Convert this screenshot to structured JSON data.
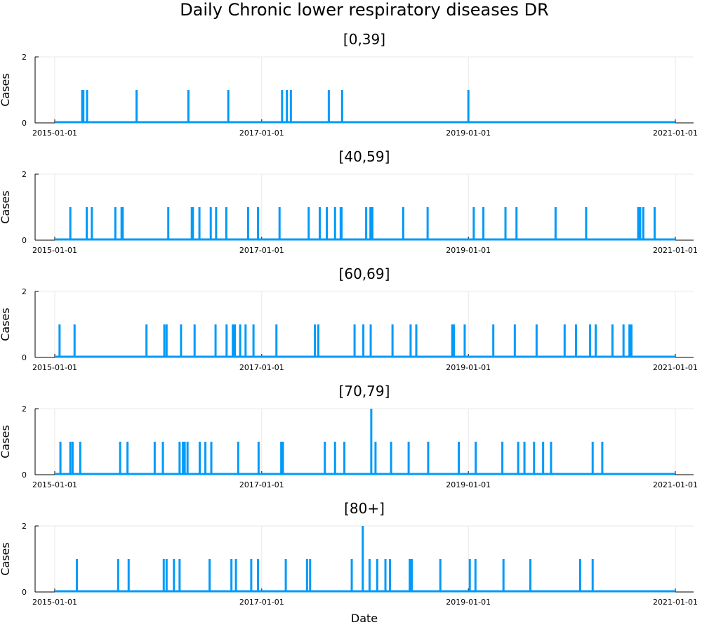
{
  "title": "Daily Chronic lower respiratory diseases DR",
  "xlabel": "Date",
  "colors": {
    "series": "#009af9",
    "grid": "#e8e8e8",
    "axis": "#000000"
  },
  "chart_data": [
    {
      "type": "line",
      "title": "[0,39]",
      "ylabel": "Cases",
      "xlim": [
        "2015-01-01",
        "2021-01-01"
      ],
      "ylim": [
        0,
        2
      ],
      "xticks": [
        "2015-01-01",
        "2017-01-01",
        "2019-01-01",
        "2021-01-01"
      ],
      "yticks": [
        0,
        2
      ],
      "grid": true,
      "baseline": 0,
      "events": [
        {
          "date": "2015-04-08",
          "value": 1
        },
        {
          "date": "2015-04-12",
          "value": 1
        },
        {
          "date": "2015-04-25",
          "value": 1
        },
        {
          "date": "2015-10-17",
          "value": 1
        },
        {
          "date": "2016-04-17",
          "value": 1
        },
        {
          "date": "2016-09-05",
          "value": 1
        },
        {
          "date": "2017-03-14",
          "value": 1
        },
        {
          "date": "2017-03-31",
          "value": 1
        },
        {
          "date": "2017-04-14",
          "value": 1
        },
        {
          "date": "2017-08-26",
          "value": 1
        },
        {
          "date": "2017-10-12",
          "value": 1
        },
        {
          "date": "2019-01-01",
          "value": 1
        }
      ]
    },
    {
      "type": "line",
      "title": "[40,59]",
      "ylabel": "Cases",
      "xlim": [
        "2015-01-01",
        "2021-01-01"
      ],
      "ylim": [
        0,
        2
      ],
      "xticks": [
        "2015-01-01",
        "2017-01-01",
        "2019-01-01",
        "2021-01-01"
      ],
      "yticks": [
        0,
        2
      ],
      "grid": true,
      "baseline": 0,
      "events": [
        {
          "date": "2015-02-25",
          "value": 1
        },
        {
          "date": "2015-04-24",
          "value": 1
        },
        {
          "date": "2015-05-12",
          "value": 1
        },
        {
          "date": "2015-08-03",
          "value": 1
        },
        {
          "date": "2015-08-25",
          "value": 1
        },
        {
          "date": "2015-08-29",
          "value": 1
        },
        {
          "date": "2016-02-06",
          "value": 1
        },
        {
          "date": "2016-04-29",
          "value": 1
        },
        {
          "date": "2016-05-03",
          "value": 1
        },
        {
          "date": "2016-05-26",
          "value": 1
        },
        {
          "date": "2016-07-05",
          "value": 1
        },
        {
          "date": "2016-07-24",
          "value": 1
        },
        {
          "date": "2016-08-29",
          "value": 1
        },
        {
          "date": "2016-11-14",
          "value": 1
        },
        {
          "date": "2016-12-19",
          "value": 1
        },
        {
          "date": "2017-03-05",
          "value": 1
        },
        {
          "date": "2017-06-16",
          "value": 1
        },
        {
          "date": "2017-07-25",
          "value": 1
        },
        {
          "date": "2017-08-19",
          "value": 1
        },
        {
          "date": "2017-09-17",
          "value": 1
        },
        {
          "date": "2017-10-07",
          "value": 1
        },
        {
          "date": "2017-10-10",
          "value": 1
        },
        {
          "date": "2018-01-05",
          "value": 1
        },
        {
          "date": "2018-01-20",
          "value": 1
        },
        {
          "date": "2018-01-27",
          "value": 1
        },
        {
          "date": "2018-05-16",
          "value": 1
        },
        {
          "date": "2018-08-10",
          "value": 1
        },
        {
          "date": "2019-01-20",
          "value": 1
        },
        {
          "date": "2019-02-23",
          "value": 1
        },
        {
          "date": "2019-05-12",
          "value": 1
        },
        {
          "date": "2019-06-20",
          "value": 1
        },
        {
          "date": "2019-11-05",
          "value": 1
        },
        {
          "date": "2020-02-21",
          "value": 1
        },
        {
          "date": "2020-08-23",
          "value": 1
        },
        {
          "date": "2020-08-30",
          "value": 1
        },
        {
          "date": "2020-09-10",
          "value": 1
        },
        {
          "date": "2020-10-20",
          "value": 1
        }
      ]
    },
    {
      "type": "line",
      "title": "[60,69]",
      "ylabel": "Cases",
      "xlim": [
        "2015-01-01",
        "2021-01-01"
      ],
      "ylim": [
        0,
        2
      ],
      "xticks": [
        "2015-01-01",
        "2017-01-01",
        "2019-01-01",
        "2021-01-01"
      ],
      "yticks": [
        0,
        2
      ],
      "grid": true,
      "baseline": 0,
      "events": [
        {
          "date": "2015-01-18",
          "value": 1
        },
        {
          "date": "2015-03-12",
          "value": 1
        },
        {
          "date": "2015-11-21",
          "value": 1
        },
        {
          "date": "2016-01-23",
          "value": 1
        },
        {
          "date": "2016-01-31",
          "value": 1
        },
        {
          "date": "2016-03-22",
          "value": 1
        },
        {
          "date": "2016-05-09",
          "value": 1
        },
        {
          "date": "2016-07-22",
          "value": 1
        },
        {
          "date": "2016-08-30",
          "value": 1
        },
        {
          "date": "2016-09-21",
          "value": 1
        },
        {
          "date": "2016-09-28",
          "value": 1
        },
        {
          "date": "2016-10-17",
          "value": 1
        },
        {
          "date": "2016-11-05",
          "value": 1
        },
        {
          "date": "2016-12-03",
          "value": 1
        },
        {
          "date": "2017-02-22",
          "value": 1
        },
        {
          "date": "2017-07-08",
          "value": 1
        },
        {
          "date": "2017-07-20",
          "value": 1
        },
        {
          "date": "2017-11-25",
          "value": 1
        },
        {
          "date": "2017-12-26",
          "value": 1
        },
        {
          "date": "2018-01-21",
          "value": 1
        },
        {
          "date": "2018-04-08",
          "value": 1
        },
        {
          "date": "2018-06-11",
          "value": 1
        },
        {
          "date": "2018-07-01",
          "value": 1
        },
        {
          "date": "2018-11-05",
          "value": 1
        },
        {
          "date": "2018-11-11",
          "value": 1
        },
        {
          "date": "2018-12-19",
          "value": 1
        },
        {
          "date": "2019-03-30",
          "value": 1
        },
        {
          "date": "2019-06-14",
          "value": 1
        },
        {
          "date": "2019-08-30",
          "value": 1
        },
        {
          "date": "2019-12-07",
          "value": 1
        },
        {
          "date": "2020-01-16",
          "value": 1
        },
        {
          "date": "2020-03-06",
          "value": 1
        },
        {
          "date": "2020-03-26",
          "value": 1
        },
        {
          "date": "2020-05-24",
          "value": 1
        },
        {
          "date": "2020-07-02",
          "value": 1
        },
        {
          "date": "2020-07-23",
          "value": 1
        },
        {
          "date": "2020-07-30",
          "value": 1
        }
      ]
    },
    {
      "type": "line",
      "title": "[70,79]",
      "ylabel": "Cases",
      "xlim": [
        "2015-01-01",
        "2021-01-01"
      ],
      "ylim": [
        0,
        2
      ],
      "xticks": [
        "2015-01-01",
        "2017-01-01",
        "2019-01-01",
        "2021-01-01"
      ],
      "yticks": [
        0,
        2
      ],
      "grid": true,
      "baseline": 0,
      "events": [
        {
          "date": "2015-01-21",
          "value": 1
        },
        {
          "date": "2015-02-25",
          "value": 1
        },
        {
          "date": "2015-03-05",
          "value": 1
        },
        {
          "date": "2015-04-01",
          "value": 1
        },
        {
          "date": "2015-08-20",
          "value": 1
        },
        {
          "date": "2015-09-15",
          "value": 1
        },
        {
          "date": "2015-12-20",
          "value": 1
        },
        {
          "date": "2016-01-18",
          "value": 1
        },
        {
          "date": "2016-03-17",
          "value": 1
        },
        {
          "date": "2016-03-29",
          "value": 1
        },
        {
          "date": "2016-04-04",
          "value": 1
        },
        {
          "date": "2016-04-14",
          "value": 1
        },
        {
          "date": "2016-05-27",
          "value": 1
        },
        {
          "date": "2016-06-16",
          "value": 1
        },
        {
          "date": "2016-07-07",
          "value": 1
        },
        {
          "date": "2016-10-10",
          "value": 1
        },
        {
          "date": "2016-12-21",
          "value": 1
        },
        {
          "date": "2017-03-11",
          "value": 1
        },
        {
          "date": "2017-03-17",
          "value": 1
        },
        {
          "date": "2017-08-12",
          "value": 1
        },
        {
          "date": "2017-09-17",
          "value": 1
        },
        {
          "date": "2017-10-20",
          "value": 1
        },
        {
          "date": "2018-01-23",
          "value": 2
        },
        {
          "date": "2018-02-07",
          "value": 1
        },
        {
          "date": "2018-04-03",
          "value": 1
        },
        {
          "date": "2018-06-04",
          "value": 1
        },
        {
          "date": "2018-08-12",
          "value": 1
        },
        {
          "date": "2018-11-28",
          "value": 1
        },
        {
          "date": "2019-01-27",
          "value": 1
        },
        {
          "date": "2019-05-01",
          "value": 1
        },
        {
          "date": "2019-06-26",
          "value": 1
        },
        {
          "date": "2019-07-18",
          "value": 1
        },
        {
          "date": "2019-08-21",
          "value": 1
        },
        {
          "date": "2019-09-22",
          "value": 1
        },
        {
          "date": "2019-10-20",
          "value": 1
        },
        {
          "date": "2020-03-15",
          "value": 1
        },
        {
          "date": "2020-04-18",
          "value": 1
        }
      ]
    },
    {
      "type": "line",
      "title": "[80+]",
      "ylabel": "Cases",
      "xlim": [
        "2015-01-01",
        "2021-01-01"
      ],
      "ylim": [
        0,
        2
      ],
      "xticks": [
        "2015-01-01",
        "2017-01-01",
        "2019-01-01",
        "2021-01-01"
      ],
      "yticks": [
        0,
        2
      ],
      "grid": true,
      "baseline": 0,
      "events": [
        {
          "date": "2015-03-20",
          "value": 1
        },
        {
          "date": "2015-08-13",
          "value": 1
        },
        {
          "date": "2015-09-19",
          "value": 1
        },
        {
          "date": "2016-01-21",
          "value": 1
        },
        {
          "date": "2016-01-31",
          "value": 1
        },
        {
          "date": "2016-02-26",
          "value": 1
        },
        {
          "date": "2016-03-17",
          "value": 1
        },
        {
          "date": "2016-07-01",
          "value": 1
        },
        {
          "date": "2016-09-16",
          "value": 1
        },
        {
          "date": "2016-10-02",
          "value": 1
        },
        {
          "date": "2016-11-25",
          "value": 1
        },
        {
          "date": "2016-12-19",
          "value": 1
        },
        {
          "date": "2017-03-27",
          "value": 1
        },
        {
          "date": "2017-06-10",
          "value": 1
        },
        {
          "date": "2017-06-21",
          "value": 1
        },
        {
          "date": "2017-11-15",
          "value": 1
        },
        {
          "date": "2017-12-24",
          "value": 2
        },
        {
          "date": "2018-01-17",
          "value": 1
        },
        {
          "date": "2018-02-13",
          "value": 1
        },
        {
          "date": "2018-03-14",
          "value": 1
        },
        {
          "date": "2018-03-30",
          "value": 1
        },
        {
          "date": "2018-06-08",
          "value": 1
        },
        {
          "date": "2018-06-15",
          "value": 1
        },
        {
          "date": "2018-09-24",
          "value": 1
        },
        {
          "date": "2019-01-06",
          "value": 1
        },
        {
          "date": "2019-01-26",
          "value": 1
        },
        {
          "date": "2019-05-05",
          "value": 1
        },
        {
          "date": "2019-08-08",
          "value": 1
        },
        {
          "date": "2020-01-31",
          "value": 1
        },
        {
          "date": "2020-03-15",
          "value": 1
        }
      ]
    }
  ]
}
